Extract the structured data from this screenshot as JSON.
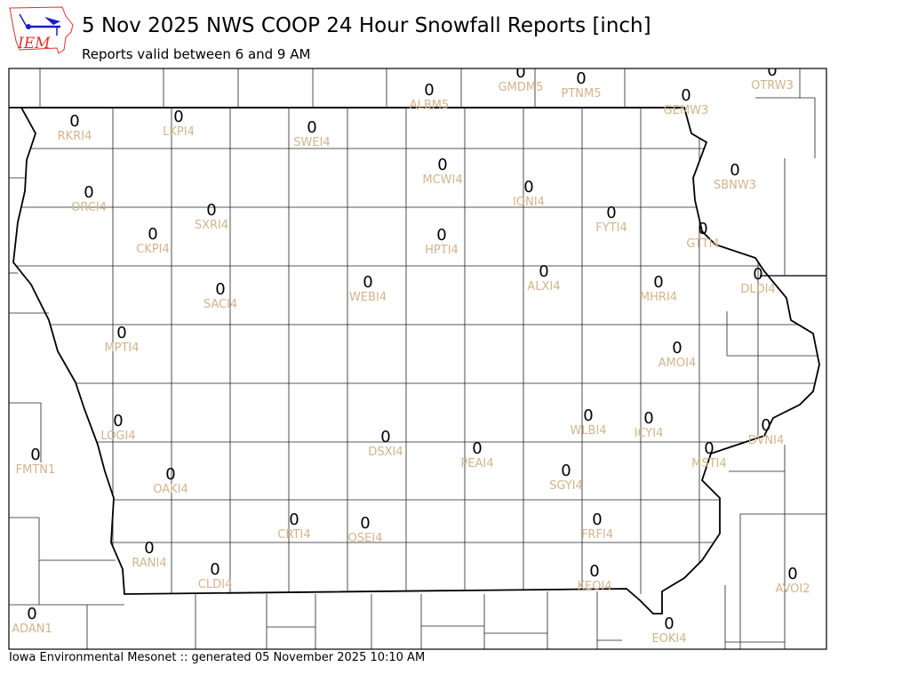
{
  "header": {
    "title": "5 Nov 2025 NWS COOP 24 Hour Snowfall Reports [inch]",
    "subtitle": "Reports valid between 6 and 9 AM",
    "logo_text": "IEM"
  },
  "footer": "Iowa Environmental Mesonet :: generated 05 November 2025 10:10 AM",
  "colors": {
    "value": "#000000",
    "station_label": "#d2b48c",
    "logo": "#e03030",
    "logo_icon": "#1a1acc"
  },
  "stations": [
    {
      "id": "ALBM5",
      "value": "0"
    },
    {
      "id": "GMDM5",
      "value": "0"
    },
    {
      "id": "PTNM5",
      "value": "0"
    },
    {
      "id": "OTRW3",
      "value": "0"
    },
    {
      "id": "GEMW3",
      "value": "0"
    },
    {
      "id": "RKRI4",
      "value": "0"
    },
    {
      "id": "LKPI4",
      "value": "0"
    },
    {
      "id": "SWEI4",
      "value": "0"
    },
    {
      "id": "MCWI4",
      "value": "0"
    },
    {
      "id": "IONI4",
      "value": "0"
    },
    {
      "id": "FYTI4",
      "value": "0"
    },
    {
      "id": "SBNW3",
      "value": "0"
    },
    {
      "id": "ORCI4",
      "value": "0"
    },
    {
      "id": "SXRI4",
      "value": "0"
    },
    {
      "id": "CKPI4",
      "value": "0"
    },
    {
      "id": "HPTI4",
      "value": "0"
    },
    {
      "id": "GTTI4",
      "value": "0"
    },
    {
      "id": "ALXI4",
      "value": "0"
    },
    {
      "id": "DLDI4",
      "value": "0"
    },
    {
      "id": "SACI4",
      "value": "0"
    },
    {
      "id": "WEBI4",
      "value": "0"
    },
    {
      "id": "MHRI4",
      "value": "0"
    },
    {
      "id": "MPTI4",
      "value": "0"
    },
    {
      "id": "AMOI4",
      "value": "0"
    },
    {
      "id": "LOGI4",
      "value": "0"
    },
    {
      "id": "WLBI4",
      "value": "0"
    },
    {
      "id": "ICYI4",
      "value": "0"
    },
    {
      "id": "DVNI4",
      "value": "0"
    },
    {
      "id": "FMTN1",
      "value": "0"
    },
    {
      "id": "DSXI4",
      "value": "0"
    },
    {
      "id": "PEAI4",
      "value": "0"
    },
    {
      "id": "MSTI4",
      "value": "0"
    },
    {
      "id": "SGYI4",
      "value": "0"
    },
    {
      "id": "OAKI4",
      "value": "0"
    },
    {
      "id": "CRTI4",
      "value": "0"
    },
    {
      "id": "OSEI4",
      "value": "0"
    },
    {
      "id": "FRFI4",
      "value": "0"
    },
    {
      "id": "RANI4",
      "value": "0"
    },
    {
      "id": "CLDI4",
      "value": "0"
    },
    {
      "id": "KEOI4",
      "value": "0"
    },
    {
      "id": "AVOI2",
      "value": "0"
    },
    {
      "id": "ADAN1",
      "value": "0"
    },
    {
      "id": "EOKI4",
      "value": "0"
    }
  ]
}
